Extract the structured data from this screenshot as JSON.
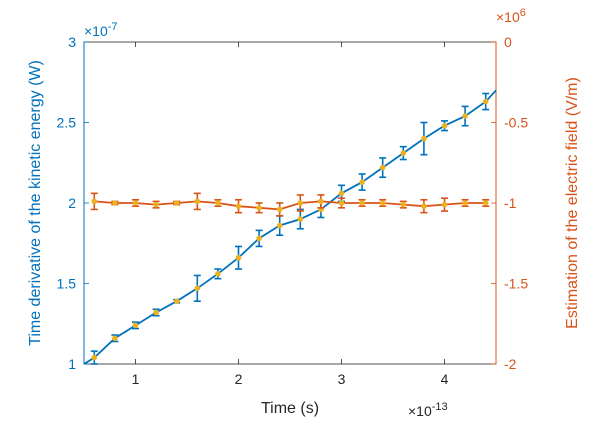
{
  "chart_data": {
    "type": "line",
    "xlabel": "Time (s)",
    "x_multiplier": "×10",
    "x_exponent": "-13",
    "xlim": [
      0.5,
      4.5
    ],
    "xticks": [
      "1",
      "2",
      "3",
      "4"
    ],
    "xtick_values": [
      1,
      2,
      3,
      4
    ],
    "y_left": {
      "label": "Time derivative of the kinetic energy (W)",
      "multiplier": "×10",
      "exponent": "-7",
      "lim": [
        1,
        3
      ],
      "ticks": [
        "1",
        "1.5",
        "2",
        "2.5",
        "3"
      ],
      "tick_values": [
        1,
        1.5,
        2,
        2.5,
        3
      ],
      "color": "#0072BD"
    },
    "y_right": {
      "label": "Estimation of the electric field (V/m)",
      "multiplier": "×10",
      "exponent": "6",
      "lim": [
        -2,
        0
      ],
      "ticks": [
        "0",
        "-0.5",
        "-1",
        "-1.5",
        "-2"
      ],
      "tick_values": [
        0,
        -0.5,
        -1,
        -1.5,
        -2
      ],
      "color": "#D95319"
    },
    "marker_color": "#EDB120",
    "grid": false,
    "series": [
      {
        "axis": "left",
        "x": [
          0.5,
          0.6,
          0.8,
          1.0,
          1.2,
          1.4,
          1.6,
          1.8,
          2.0,
          2.2,
          2.4,
          2.6,
          2.8,
          3.0,
          3.2,
          3.4,
          3.6,
          3.8,
          4.0,
          4.2,
          4.4,
          4.5
        ],
        "y": [
          1.0,
          1.04,
          1.16,
          1.24,
          1.32,
          1.39,
          1.47,
          1.56,
          1.66,
          1.78,
          1.86,
          1.9,
          1.96,
          2.06,
          2.13,
          2.22,
          2.31,
          2.4,
          2.48,
          2.54,
          2.63,
          2.7
        ],
        "err": [
          0,
          0.04,
          0.02,
          0.02,
          0.02,
          0.01,
          0.08,
          0.03,
          0.07,
          0.05,
          0.06,
          0.06,
          0.05,
          0.05,
          0.05,
          0.06,
          0.04,
          0.1,
          0.03,
          0.06,
          0.05,
          0
        ]
      },
      {
        "axis": "right",
        "x": [
          0.6,
          0.8,
          1.0,
          1.2,
          1.4,
          1.6,
          1.8,
          2.0,
          2.2,
          2.4,
          2.6,
          2.8,
          3.0,
          3.2,
          3.4,
          3.6,
          3.8,
          4.0,
          4.2,
          4.4
        ],
        "y": [
          -0.99,
          -1.0,
          -1.0,
          -1.01,
          -1.0,
          -0.99,
          -1.0,
          -1.02,
          -1.03,
          -1.04,
          -1.0,
          -0.99,
          -1.0,
          -1.0,
          -1.0,
          -1.01,
          -1.02,
          -1.01,
          -1.0,
          -1.0
        ],
        "err": [
          0.05,
          0.01,
          0.02,
          0.02,
          0.01,
          0.05,
          0.02,
          0.04,
          0.03,
          0.04,
          0.05,
          0.04,
          0.03,
          0.02,
          0.02,
          0.02,
          0.04,
          0.04,
          0.02,
          0.02
        ]
      }
    ]
  }
}
